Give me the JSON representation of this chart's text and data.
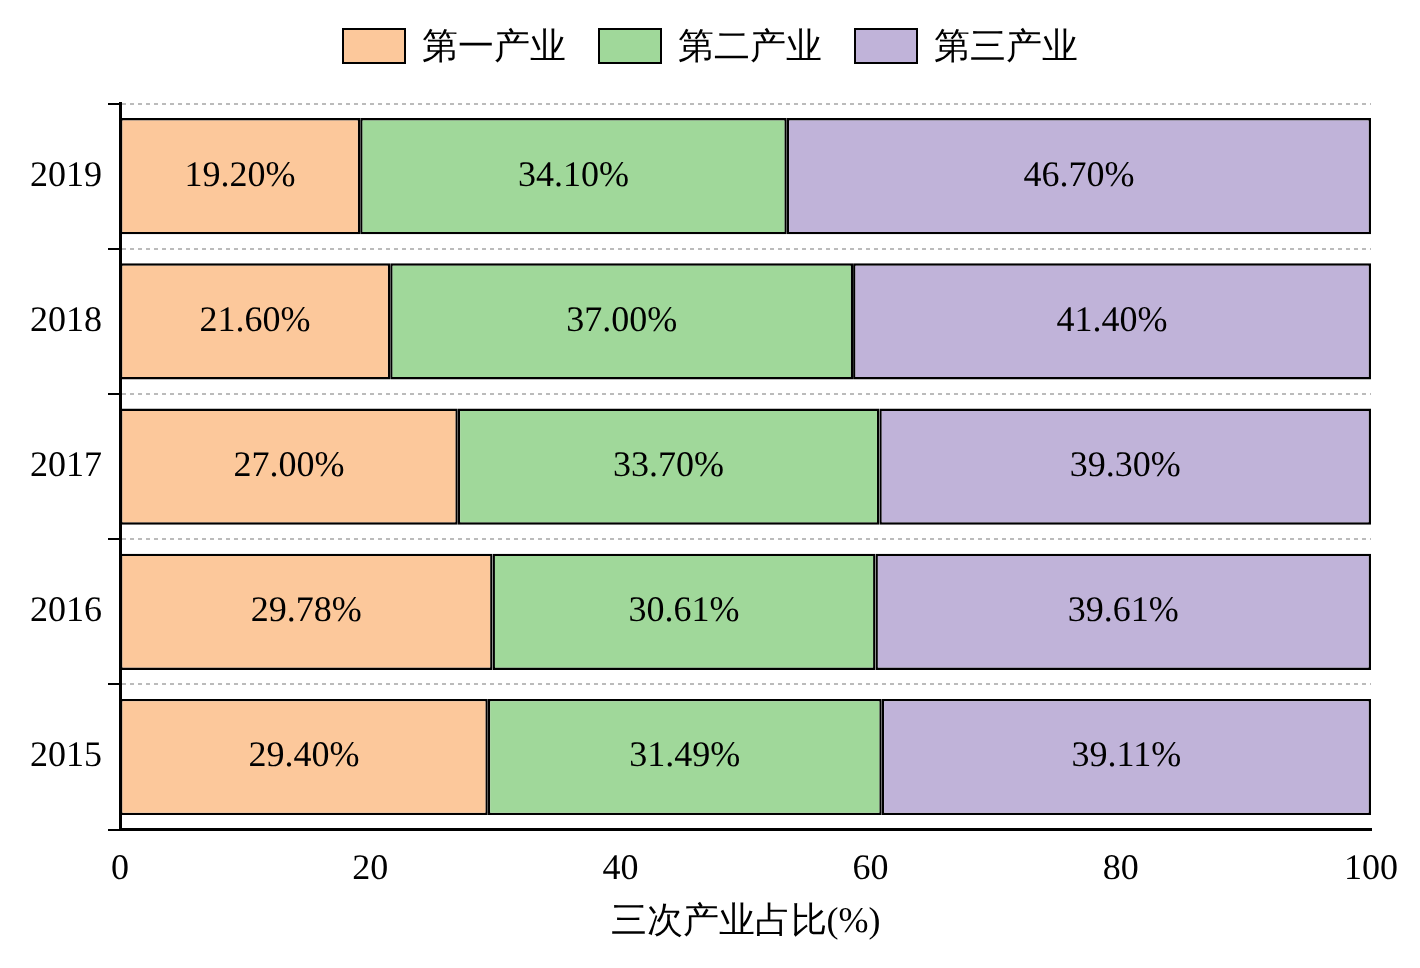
{
  "chart_data": {
    "type": "bar",
    "orientation": "horizontal",
    "stacked": true,
    "xlabel": "三次产业占比(%)",
    "categories": [
      "2019",
      "2018",
      "2017",
      "2016",
      "2015"
    ],
    "xlim": [
      0,
      100
    ],
    "xticks": [
      0,
      20,
      40,
      60,
      80,
      100
    ],
    "grid": "y",
    "legend": "top",
    "series": [
      {
        "name": "第一产业",
        "color": "#fcc89b",
        "values": [
          19.2,
          21.6,
          27.0,
          29.78,
          29.4
        ],
        "value_labels": [
          "19.20%",
          "21.60%",
          "27.00%",
          "29.78%",
          "29.40%"
        ]
      },
      {
        "name": "第二产业",
        "color": "#a0d89a",
        "values": [
          34.1,
          37.0,
          33.7,
          30.61,
          31.49
        ],
        "value_labels": [
          "34.10%",
          "37.00%",
          "33.70%",
          "30.61%",
          "31.49%"
        ]
      },
      {
        "name": "第三产业",
        "color": "#c0b3d9",
        "values": [
          46.7,
          41.4,
          39.3,
          39.61,
          39.11
        ],
        "value_labels": [
          "46.70%",
          "41.40%",
          "39.30%",
          "39.61%",
          "39.11%"
        ]
      }
    ]
  }
}
